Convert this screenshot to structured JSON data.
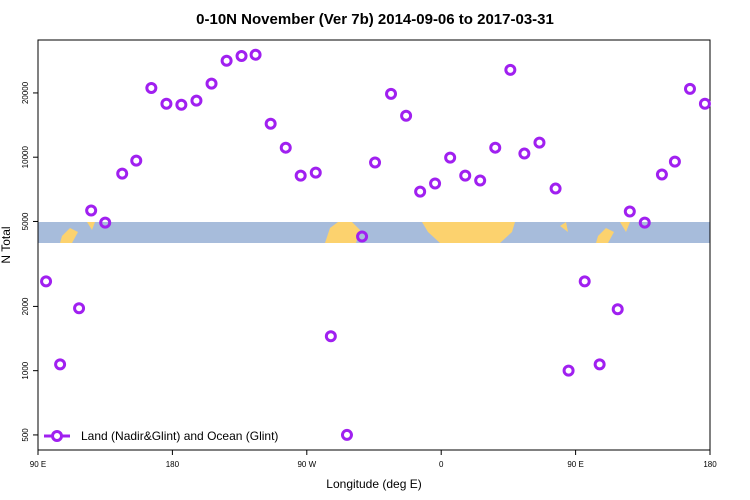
{
  "chart_data": {
    "type": "scatter",
    "title": "0-10N November (Ver 7b)   2014-09-06 to 2017-03-31",
    "x_label": "Longitude (deg E)",
    "y_label": "N Total",
    "xlim": [
      90,
      540
    ],
    "ylim": [
      425,
      35400
    ],
    "ylog": true,
    "xticks": [
      {
        "value": 90,
        "label": "90 E"
      },
      {
        "value": 180,
        "label": "180"
      },
      {
        "value": 270,
        "label": "90 W"
      },
      {
        "value": 360,
        "label": "0"
      },
      {
        "value": 450,
        "label": "90 E"
      },
      {
        "value": 540,
        "label": "180"
      }
    ],
    "yticks": [
      500,
      1000,
      2000,
      5000,
      10000,
      20000
    ],
    "legend_position": "bottom-left",
    "series": [
      {
        "name": "Land (Nadir&Glint) and Ocean (Glint)",
        "color": "#a020f0",
        "x": [
          95.4,
          104.8,
          117.5,
          125.6,
          135,
          146.4,
          155.8,
          165.9,
          176,
          186,
          196.1,
          206.2,
          216.3,
          226.3,
          235.7,
          245.8,
          255.9,
          265.9,
          276,
          286.1,
          296.9,
          307,
          315.7,
          326.4,
          336.5,
          345.9,
          355.9,
          366,
          376.1,
          386.1,
          396.2,
          406.3,
          415.7,
          425.8,
          436.6,
          445.3,
          456.1,
          466.1,
          478.2,
          486.3,
          496.3,
          507.8,
          516.5,
          526.6,
          536.6
        ],
        "values": [
          2620,
          1070,
          1960,
          5630,
          4940,
          8380,
          9640,
          21100,
          17800,
          17600,
          18400,
          22100,
          28300,
          29800,
          30200,
          14350,
          11080,
          8200,
          8470,
          1450,
          500,
          4250,
          9440,
          19800,
          15640,
          6900,
          7530,
          9950,
          8200,
          7780,
          11080,
          25650,
          10400,
          11700,
          7130,
          1000,
          2620,
          1070,
          1940,
          5570,
          4940,
          8300,
          9530,
          20900,
          17800
        ]
      }
    ]
  }
}
